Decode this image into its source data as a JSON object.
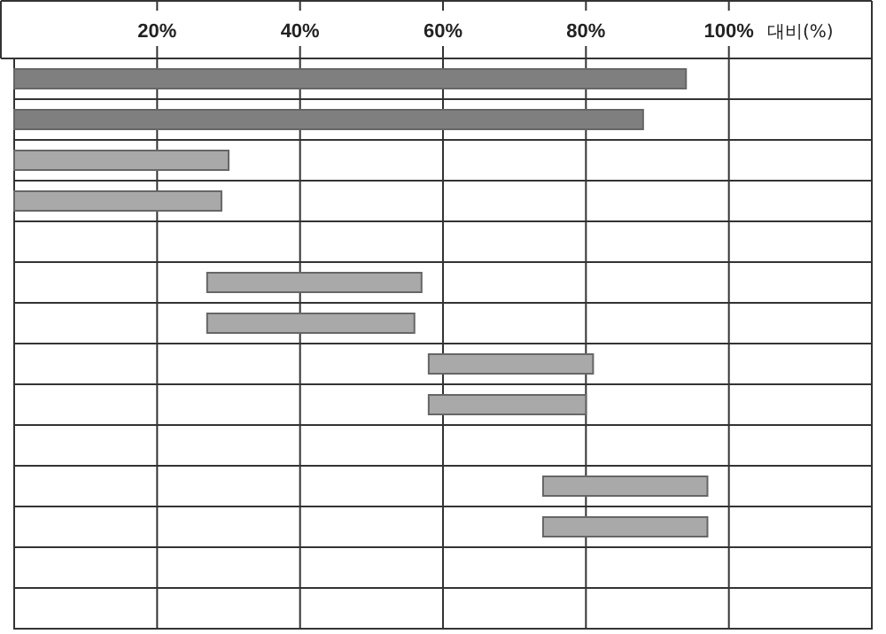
{
  "chart_data": {
    "type": "bar",
    "orientation": "horizontal",
    "relative": false,
    "categories": [
      null,
      null,
      null,
      null,
      null,
      null,
      null,
      null,
      null,
      null,
      null,
      null,
      null,
      null
    ],
    "base": [
      0,
      0,
      0,
      0,
      null,
      27,
      27,
      58,
      58,
      null,
      74,
      74,
      null,
      null
    ],
    "values": [
      94,
      88,
      30,
      29,
      null,
      30,
      29,
      23,
      22,
      null,
      23,
      23,
      null,
      null
    ],
    "colors": [
      "#7f7f7f",
      "#7f7f7f",
      "#a9a9a9",
      "#a9a9a9",
      null,
      "#a9a9a9",
      "#a9a9a9",
      "#a9a9a9",
      "#a9a9a9",
      null,
      "#a9a9a9",
      "#a9a9a9",
      null,
      null
    ],
    "xlim": [
      0,
      120
    ],
    "xticks": [
      {
        "value": 20,
        "label": "20%"
      },
      {
        "value": 40,
        "label": "40%"
      },
      {
        "value": 60,
        "label": "60%"
      },
      {
        "value": 80,
        "label": "80%"
      },
      {
        "value": 100,
        "label": "100%"
      }
    ],
    "tick_labels": "x",
    "grid": true,
    "annotations": [
      "대비(%)"
    ]
  }
}
